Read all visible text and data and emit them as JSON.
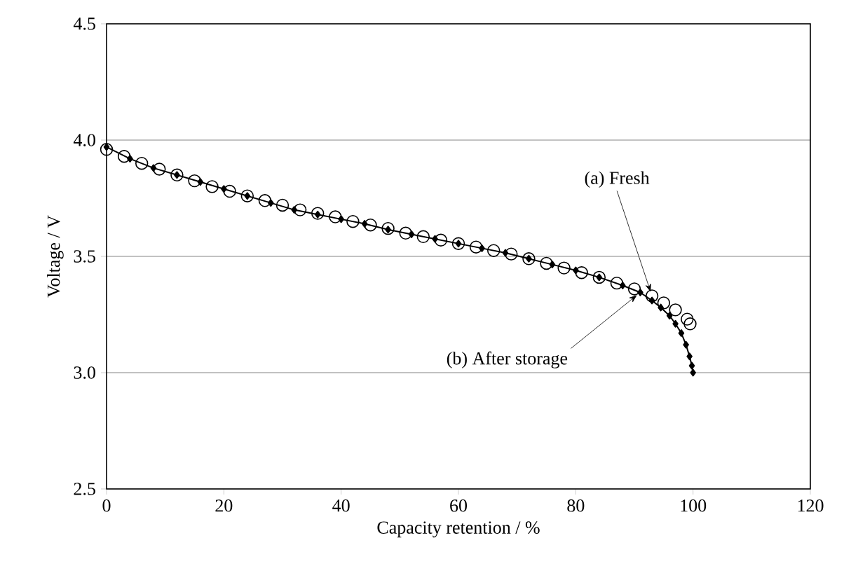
{
  "chart_data": {
    "type": "line",
    "xlabel": "Capacity retention / %",
    "ylabel": "Voltage / V",
    "xlim": [
      0,
      120
    ],
    "xticks": [
      0,
      20,
      40,
      60,
      80,
      100,
      120
    ],
    "ylim": [
      2.5,
      4.5
    ],
    "yticks": [
      {
        "value": 2.5,
        "label": "2.5"
      },
      {
        "value": 3.0,
        "label": "3.0"
      },
      {
        "value": 3.5,
        "label": "3.5"
      },
      {
        "value": 4.0,
        "label": "4.0"
      },
      {
        "value": 4.5,
        "label": "4.5"
      }
    ],
    "grid": "y",
    "legend": false,
    "series": [
      {
        "name": "(a) Fresh",
        "type": "scatter",
        "marker": "circle",
        "color": "#000000",
        "x": [
          0,
          3,
          6,
          9,
          12,
          15,
          18,
          21,
          24,
          27,
          30,
          33,
          36,
          39,
          42,
          45,
          48,
          51,
          54,
          57,
          60,
          63,
          66,
          69,
          72,
          75,
          78,
          81,
          84,
          87,
          90,
          93,
          95,
          97,
          99,
          99.5
        ],
        "values": [
          3.96,
          3.93,
          3.9,
          3.875,
          3.85,
          3.825,
          3.8,
          3.78,
          3.76,
          3.74,
          3.72,
          3.7,
          3.685,
          3.67,
          3.65,
          3.635,
          3.62,
          3.6,
          3.585,
          3.57,
          3.555,
          3.54,
          3.525,
          3.51,
          3.49,
          3.47,
          3.45,
          3.43,
          3.41,
          3.385,
          3.36,
          3.33,
          3.3,
          3.27,
          3.23,
          3.21
        ]
      },
      {
        "name": "(b) After storage",
        "marker": "diamond",
        "line_style": "solid",
        "color": "#000000",
        "x": [
          0,
          4,
          8,
          12,
          16,
          20,
          24,
          28,
          32,
          36,
          40,
          44,
          48,
          52,
          56,
          60,
          64,
          68,
          72,
          76,
          80,
          84,
          88,
          91,
          93,
          94.5,
          96,
          97,
          98,
          98.8,
          99.4,
          99.8,
          100
        ],
        "values": [
          3.97,
          3.92,
          3.88,
          3.85,
          3.82,
          3.79,
          3.76,
          3.73,
          3.7,
          3.68,
          3.66,
          3.64,
          3.615,
          3.595,
          3.575,
          3.555,
          3.535,
          3.515,
          3.49,
          3.465,
          3.44,
          3.41,
          3.375,
          3.345,
          3.31,
          3.28,
          3.245,
          3.21,
          3.17,
          3.12,
          3.07,
          3.03,
          3.0
        ]
      }
    ]
  }
}
